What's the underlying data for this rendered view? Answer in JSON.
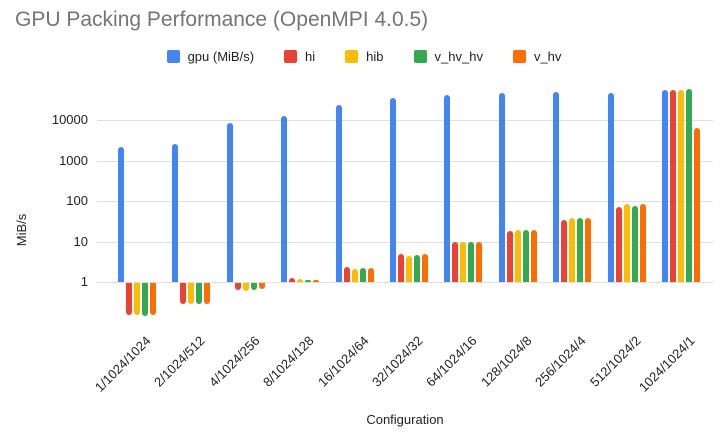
{
  "page": {
    "background": "#ffffff"
  },
  "chart_data": {
    "type": "bar",
    "title": "GPU Packing Performance (OpenMPI 4.0.5)",
    "title_color": "#757575",
    "xlabel": "Configuration",
    "ylabel": "MiB/s",
    "y_scale": "log",
    "y_ticks": [
      1,
      10,
      100,
      1000,
      10000
    ],
    "grid": true,
    "legend_position": "top",
    "gridline_color": "#e0e0e0",
    "categories": [
      "1/1024/1024",
      "2/1024/512",
      "4/1024/256",
      "8/1024/128",
      "16/1024/64",
      "32/1024/32",
      "64/1024/16",
      "128/1024/8",
      "256/1024/4",
      "512/1024/2",
      "1024/1024/1"
    ],
    "series": [
      {
        "name": "gpu (MiB/s)",
        "color": "#4285F4",
        "values": [
          2200,
          2600,
          8300,
          12500,
          24000,
          35000,
          42000,
          47000,
          50000,
          47000,
          55000
        ]
      },
      {
        "name": "hi",
        "color": "#EA4335",
        "values": [
          0.16,
          0.31,
          0.68,
          1.25,
          2.3,
          4.8,
          10,
          18,
          34,
          72,
          56000
        ]
      },
      {
        "name": "hib",
        "color": "#FBBC04",
        "values": [
          0.16,
          0.31,
          0.65,
          1.2,
          2.1,
          4.4,
          10,
          19,
          39,
          84,
          54000
        ]
      },
      {
        "name": "v_hv_hv",
        "color": "#34A853",
        "values": [
          0.15,
          0.3,
          0.68,
          1.15,
          2.25,
          4.6,
          10,
          19,
          39,
          75,
          58000
        ]
      },
      {
        "name": "v_hv",
        "color": "#FF6D00",
        "values": [
          0.16,
          0.31,
          0.7,
          1.15,
          2.2,
          4.8,
          10,
          19,
          38,
          82,
          6500
        ]
      }
    ]
  }
}
